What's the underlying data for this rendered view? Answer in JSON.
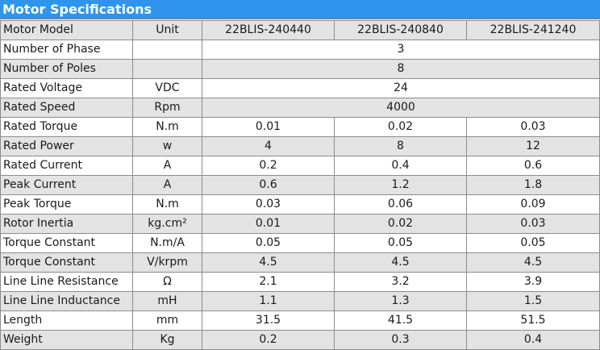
{
  "title": "Motor Specifications",
  "header": {
    "param": "Motor Model",
    "unit": "Unit",
    "models": [
      "22BLIS-240440",
      "22BLIS-240840",
      "22BLIS-241240"
    ]
  },
  "rows": [
    {
      "param": "Number of Phase",
      "unit": "",
      "values": [
        "3"
      ]
    },
    {
      "param": "Number of Poles",
      "unit": "",
      "values": [
        "8"
      ]
    },
    {
      "param": "Rated Voltage",
      "unit": "VDC",
      "values": [
        "24"
      ]
    },
    {
      "param": "Rated Speed",
      "unit": "Rpm",
      "values": [
        "4000"
      ]
    },
    {
      "param": "Rated Torque",
      "unit": "N.m",
      "values": [
        "0.01",
        "0.02",
        "0.03"
      ]
    },
    {
      "param": "Rated Power",
      "unit": "w",
      "values": [
        "4",
        "8",
        "12"
      ]
    },
    {
      "param": "Rated Current",
      "unit": "A",
      "values": [
        "0.2",
        "0.4",
        "0.6"
      ]
    },
    {
      "param": "Peak Current",
      "unit": "A",
      "values": [
        "0.6",
        "1.2",
        "1.8"
      ]
    },
    {
      "param": "Peak Torque",
      "unit": "N.m",
      "values": [
        "0.03",
        "0.06",
        "0.09"
      ]
    },
    {
      "param": "Rotor Inertia",
      "unit": "kg.cm²",
      "values": [
        "0.01",
        "0.02",
        "0.03"
      ]
    },
    {
      "param": "Torque Constant",
      "unit": "N.m/A",
      "values": [
        "0.05",
        "0.05",
        "0.05"
      ]
    },
    {
      "param": "Torque Constant",
      "unit": "V/krpm",
      "values": [
        "4.5",
        "4.5",
        "4.5"
      ]
    },
    {
      "param": "Line Line Resistance",
      "unit": "Ω",
      "values": [
        "2.1",
        "3.2",
        "3.9"
      ]
    },
    {
      "param": "Line Line Inductance",
      "unit": "mH",
      "values": [
        "1.1",
        "1.3",
        "1.5"
      ]
    },
    {
      "param": "Length",
      "unit": "mm",
      "values": [
        "31.5",
        "41.5",
        "51.5"
      ]
    },
    {
      "param": "Weight",
      "unit": "Kg",
      "values": [
        "0.2",
        "0.3",
        "0.4"
      ]
    }
  ]
}
